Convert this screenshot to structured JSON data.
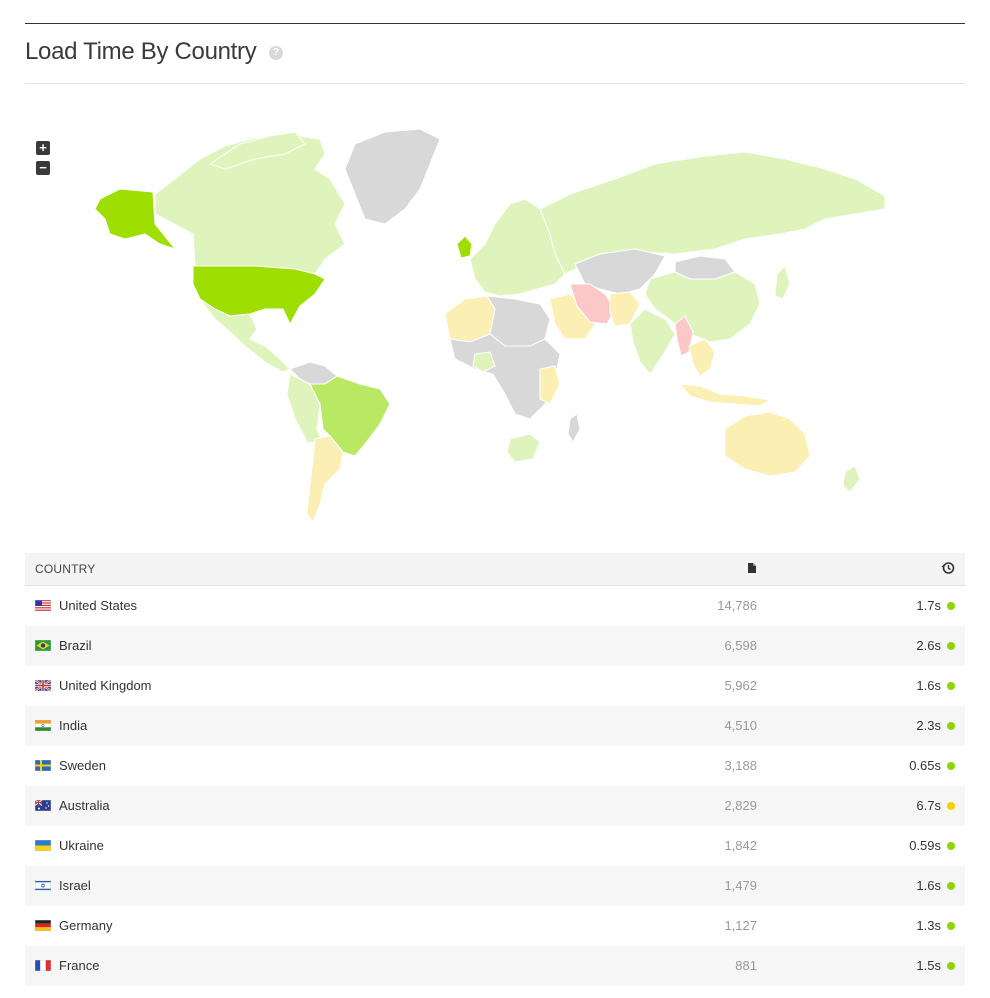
{
  "header": {
    "title": "Load Time By Country",
    "help_icon": "question-circle-icon"
  },
  "map": {
    "zoom_in_label": "+",
    "zoom_out_label": "−",
    "colors": {
      "none": "#d8d8d8",
      "light": "#dff4bd",
      "medium": "#b9e864",
      "strong": "#9ede00",
      "slow": "#fcefb4",
      "very_slow": "#fbc7c7"
    }
  },
  "table": {
    "columns": {
      "country": "COUNTRY",
      "views_icon": "page-icon",
      "time_icon": "history-icon"
    },
    "rows": [
      {
        "country": "United States",
        "flag": "us",
        "views": "14,786",
        "time": "1.7s",
        "status": "#8fd400"
      },
      {
        "country": "Brazil",
        "flag": "br",
        "views": "6,598",
        "time": "2.6s",
        "status": "#8fd400"
      },
      {
        "country": "United Kingdom",
        "flag": "gb",
        "views": "5,962",
        "time": "1.6s",
        "status": "#8fd400"
      },
      {
        "country": "India",
        "flag": "in",
        "views": "4,510",
        "time": "2.3s",
        "status": "#8fd400"
      },
      {
        "country": "Sweden",
        "flag": "se",
        "views": "3,188",
        "time": "0.65s",
        "status": "#8fd400"
      },
      {
        "country": "Australia",
        "flag": "au",
        "views": "2,829",
        "time": "6.7s",
        "status": "#f5d000"
      },
      {
        "country": "Ukraine",
        "flag": "ua",
        "views": "1,842",
        "time": "0.59s",
        "status": "#8fd400"
      },
      {
        "country": "Israel",
        "flag": "il",
        "views": "1,479",
        "time": "1.6s",
        "status": "#8fd400"
      },
      {
        "country": "Germany",
        "flag": "de",
        "views": "1,127",
        "time": "1.3s",
        "status": "#8fd400"
      },
      {
        "country": "France",
        "flag": "fr",
        "views": "881",
        "time": "1.5s",
        "status": "#8fd400"
      }
    ]
  }
}
